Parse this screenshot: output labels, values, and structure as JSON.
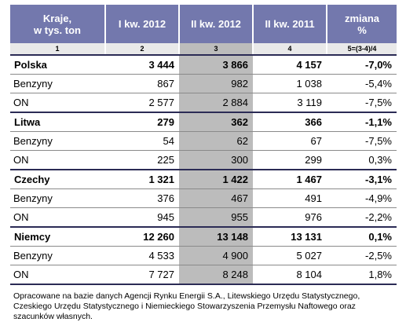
{
  "header": {
    "col1": "Kraje,\nw tys. ton",
    "col2": "I kw. 2012",
    "col3": "II kw. 2012",
    "col4": "II kw. 2011",
    "col5": "zmiana\n%"
  },
  "col_numbers": [
    "1",
    "2",
    "3",
    "4",
    "5=(3-4)/4"
  ],
  "rows": [
    {
      "name": "Polska",
      "q1_2012": "3 444",
      "q2_2012": "3 866",
      "q2_2011": "4 157",
      "change": "-7,0%"
    },
    {
      "name": "Benzyny",
      "q1_2012": "867",
      "q2_2012": "982",
      "q2_2011": "1 038",
      "change": "-5,4%"
    },
    {
      "name": "ON",
      "q1_2012": "2 577",
      "q2_2012": "2 884",
      "q2_2011": "3 119",
      "change": "-7,5%"
    },
    {
      "name": "Litwa",
      "q1_2012": "279",
      "q2_2012": "362",
      "q2_2011": "366",
      "change": "-1,1%"
    },
    {
      "name": "Benzyny",
      "q1_2012": "54",
      "q2_2012": "62",
      "q2_2011": "67",
      "change": "-7,5%"
    },
    {
      "name": "ON",
      "q1_2012": "225",
      "q2_2012": "300",
      "q2_2011": "299",
      "change": "0,3%"
    },
    {
      "name": "Czechy",
      "q1_2012": "1 321",
      "q2_2012": "1 422",
      "q2_2011": "1 467",
      "change": "-3,1%"
    },
    {
      "name": "Benzyny",
      "q1_2012": "376",
      "q2_2012": "467",
      "q2_2011": "491",
      "change": "-4,9%"
    },
    {
      "name": "ON",
      "q1_2012": "945",
      "q2_2012": "955",
      "q2_2011": "976",
      "change": "-2,2%"
    },
    {
      "name": "Niemcy",
      "q1_2012": "12 260",
      "q2_2012": "13 148",
      "q2_2011": "13 131",
      "change": "0,1%"
    },
    {
      "name": "Benzyny",
      "q1_2012": "4 533",
      "q2_2012": "4 900",
      "q2_2011": "5 027",
      "change": "-2,5%"
    },
    {
      "name": "ON",
      "q1_2012": "7 727",
      "q2_2012": "8 248",
      "q2_2011": "8 104",
      "change": "1,8%"
    }
  ],
  "note": "Opracowane na bazie danych Agencji Rynku Energii S.A., Litewskiego Urzędu Statystycznego, Czeskiego Urzędu Statystycznego i Niemieckiego Stowarzyszenia Przemysłu Naftowego oraz szacunków własnych.",
  "colors": {
    "header_bg": "#7378ad",
    "highlight_col": "#bcbcbc",
    "rule": "#2b2b55"
  }
}
